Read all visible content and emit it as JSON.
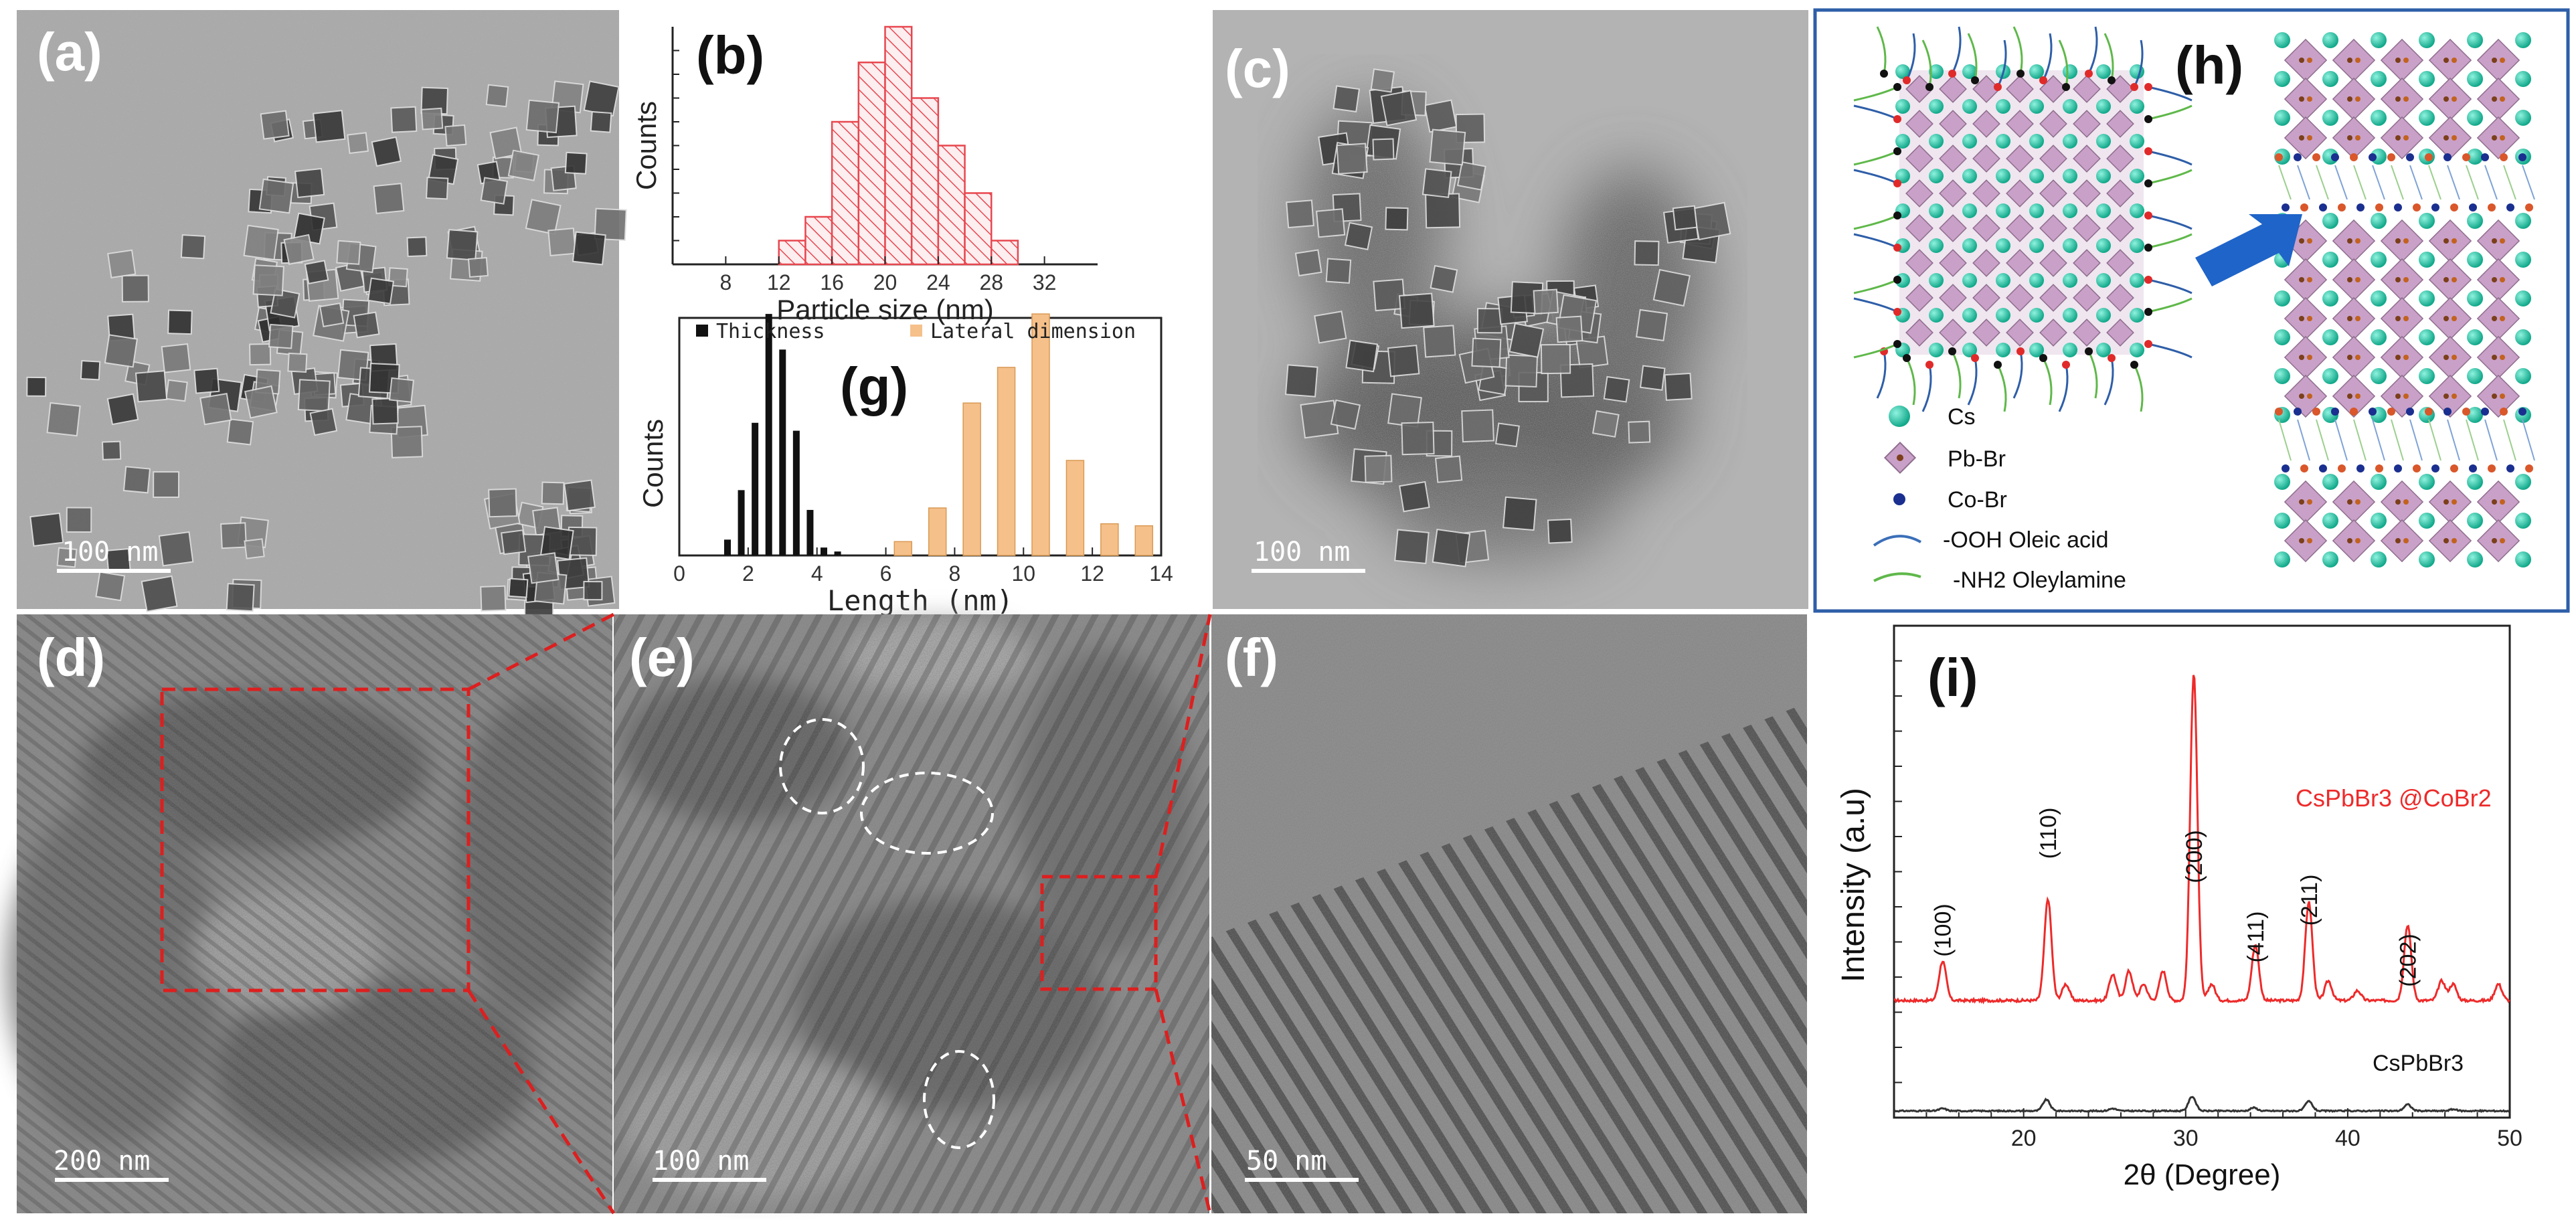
{
  "panels": {
    "a": {
      "label": "(a)",
      "scale_text": "100 nm"
    },
    "b": {
      "label": "(b)"
    },
    "c": {
      "label": "(c)",
      "scale_text": "100 nm"
    },
    "d": {
      "label": "(d)",
      "scale_text": "200 nm"
    },
    "e": {
      "label": "(e)",
      "scale_text": "100 nm"
    },
    "f": {
      "label": "(f)",
      "scale_text": "50 nm"
    },
    "g": {
      "label": "(g)"
    },
    "h": {
      "label": "(h)",
      "legend": [
        {
          "text": "Cs",
          "color": "#2fd6b4"
        },
        {
          "text": "Pb-Br",
          "color": "#c9a0c8"
        },
        {
          "text": "Co-Br",
          "color": "#1a2f8f"
        },
        {
          "text": "-OOH Oleic acid",
          "color": "#3b6fb8"
        },
        {
          "text": "-NH2 Oleylamine",
          "color": "#5fb84a"
        }
      ]
    },
    "i": {
      "label": "(i)"
    }
  },
  "colors": {
    "hist_b": "#e8474f",
    "thickness": "#111111",
    "lateral": "#f5c08a",
    "xrd_cobr": "#ee2a2a",
    "xrd_plain": "#333333",
    "dashed_box": "#dd1f1f",
    "frame_h": "#2e5ea8",
    "arrow": "#1f64c8"
  },
  "chart_data": [
    {
      "id": "b",
      "type": "bar",
      "xlabel": "Particle size (nm)",
      "ylabel": "Counts",
      "xlim": [
        4,
        36
      ],
      "xticks": [
        "8",
        "12",
        "16",
        "20",
        "24",
        "28",
        "32"
      ],
      "ylim": [
        0,
        10
      ],
      "bins": [
        12,
        14,
        16,
        18,
        20,
        22,
        24,
        26,
        28,
        30
      ],
      "values": [
        1,
        2,
        6,
        8.5,
        10,
        7,
        5,
        3,
        1,
        0
      ]
    },
    {
      "id": "g",
      "type": "bar",
      "xlabel": "Length (nm)",
      "ylabel": "Counts",
      "xlim": [
        0,
        14
      ],
      "xticks": [
        "0",
        "2",
        "4",
        "6",
        "8",
        "10",
        "12",
        "14"
      ],
      "ylim": [
        0,
        12
      ],
      "series": [
        {
          "name": "Thickness",
          "x": [
            1.4,
            1.8,
            2.2,
            2.6,
            3.0,
            3.4,
            3.8,
            4.2,
            4.6
          ],
          "values": [
            0.8,
            3.3,
            6.7,
            12.2,
            10.4,
            6.3,
            2.3,
            0.4,
            0.2
          ]
        },
        {
          "name": "Lateral dimension",
          "x": [
            6.5,
            7.5,
            8.5,
            9.5,
            10.5,
            11.5,
            12.5,
            13.5
          ],
          "values": [
            0.7,
            2.4,
            7.7,
            9.5,
            12.2,
            4.8,
            1.6,
            1.5
          ]
        }
      ]
    },
    {
      "id": "i",
      "type": "line",
      "xlabel": "2θ (Degree)",
      "ylabel": "Intensity (a.u)",
      "xlim": [
        12,
        50
      ],
      "xticks": [
        "20",
        "30",
        "40",
        "50"
      ],
      "peak_labels": [
        {
          "text": "(100)",
          "x": 15.0
        },
        {
          "text": "(110)",
          "x": 21.5
        },
        {
          "text": "(200)",
          "x": 30.5
        },
        {
          "text": "(411)",
          "x": 34.3
        },
        {
          "text": "(211)",
          "x": 37.6
        },
        {
          "text": "(202)",
          "x": 43.7
        }
      ],
      "series": [
        {
          "name": "CsPbBr3 @CoBr2",
          "peaks": [
            [
              15.0,
              0.12
            ],
            [
              21.5,
              0.31
            ],
            [
              22.6,
              0.05
            ],
            [
              25.5,
              0.08
            ],
            [
              26.5,
              0.09
            ],
            [
              27.4,
              0.05
            ],
            [
              28.6,
              0.09
            ],
            [
              30.5,
              1.0
            ],
            [
              31.6,
              0.05
            ],
            [
              34.3,
              0.17
            ],
            [
              37.6,
              0.3
            ],
            [
              38.8,
              0.06
            ],
            [
              40.6,
              0.03
            ],
            [
              43.7,
              0.23
            ],
            [
              45.8,
              0.06
            ],
            [
              46.5,
              0.05
            ],
            [
              49.3,
              0.05
            ]
          ]
        },
        {
          "name": "CsPbBr3",
          "peaks": [
            [
              15.0,
              0.015
            ],
            [
              21.4,
              0.07
            ],
            [
              25.5,
              0.015
            ],
            [
              30.4,
              0.09
            ],
            [
              34.2,
              0.02
            ],
            [
              37.6,
              0.06
            ],
            [
              43.7,
              0.04
            ],
            [
              46.5,
              0.01
            ]
          ]
        }
      ]
    }
  ]
}
